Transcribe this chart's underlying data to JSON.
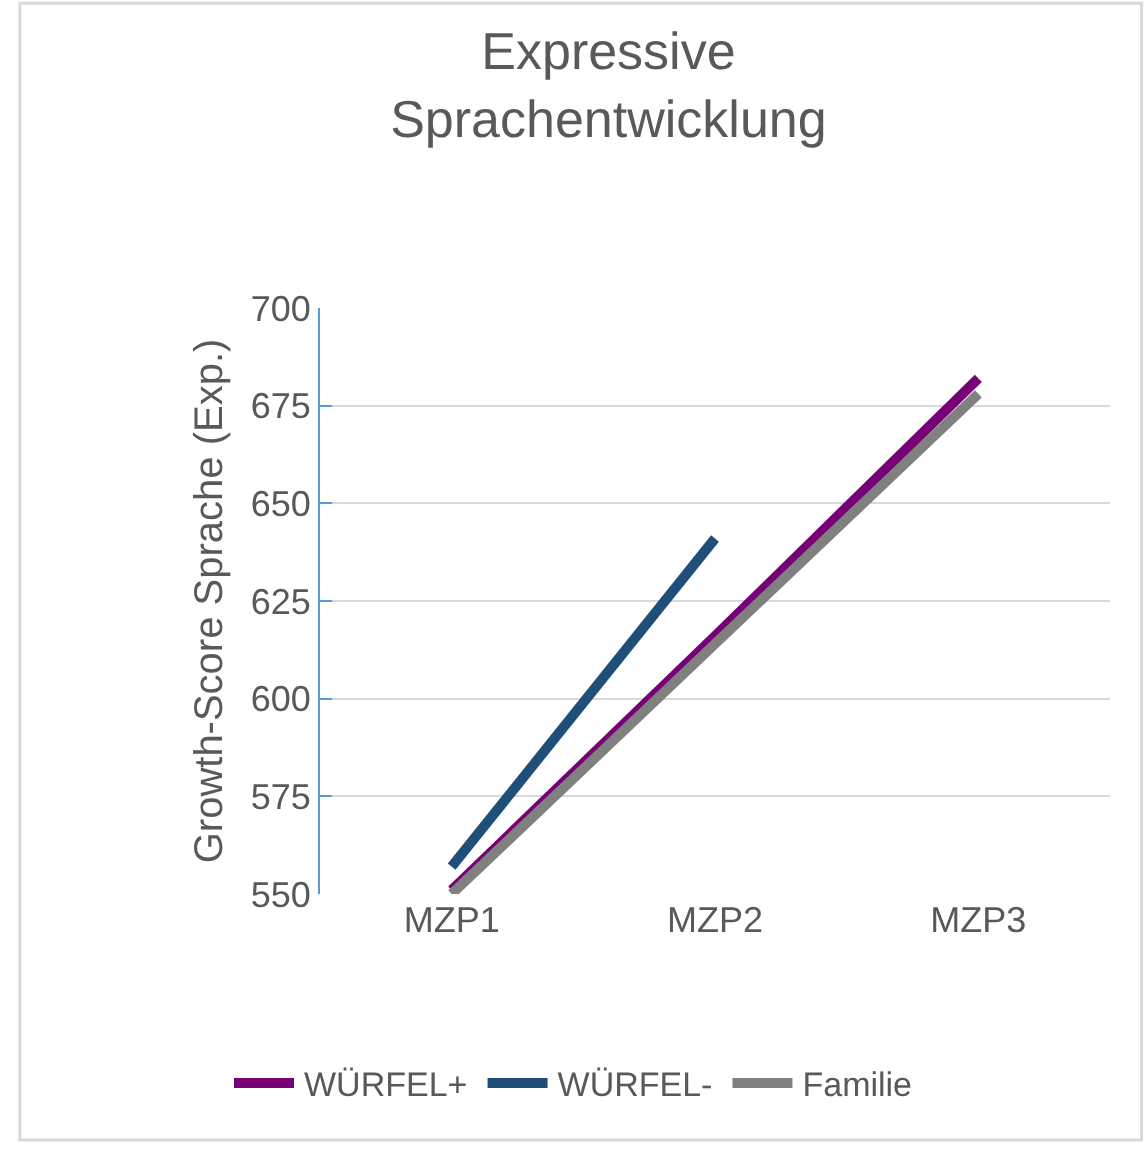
{
  "chart_data": {
    "type": "line",
    "title": "Expressive\nSprachentwicklung",
    "ylabel": "Growth-Score Sprache (Exp.)",
    "categories": [
      "MZP1",
      "MZP2",
      "MZP3"
    ],
    "series": [
      {
        "name": "WÜRFEL+",
        "color": "#770077",
        "values": [
          551,
          616,
          682
        ]
      },
      {
        "name": "WÜRFEL-",
        "color": "#1f4e79",
        "values": [
          557,
          641,
          null
        ]
      },
      {
        "name": "Familie",
        "color": "#808080",
        "values": [
          550,
          614,
          678
        ]
      }
    ],
    "ylim": [
      550,
      700
    ],
    "yticks": [
      550,
      575,
      600,
      625,
      650,
      675,
      700
    ],
    "grid": "y",
    "legend": "bottom",
    "marker": "none",
    "line_style": "solid"
  }
}
